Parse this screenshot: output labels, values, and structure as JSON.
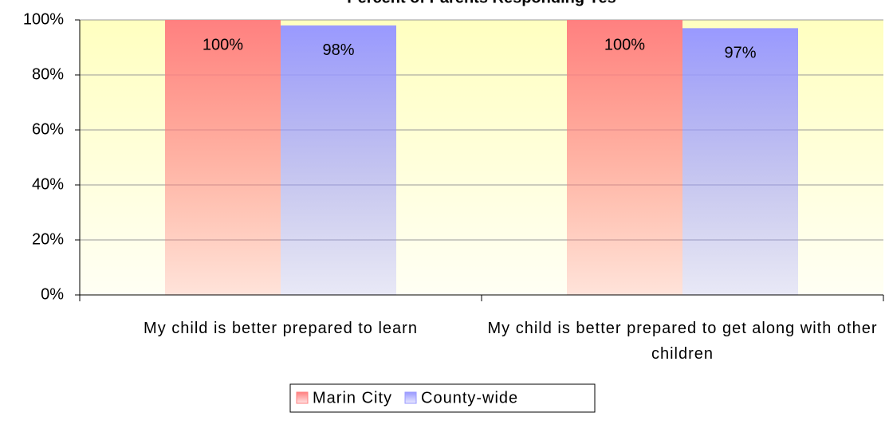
{
  "chart_data": {
    "type": "bar",
    "title": "Percent of Parents Responding Yes",
    "categories": [
      "My child is better prepared to learn",
      "My child is better prepared to get along with other children"
    ],
    "series": [
      {
        "name": "Marin City",
        "color": "#ff8080",
        "values": [
          100,
          100
        ],
        "value_labels": [
          "100%",
          "100%"
        ]
      },
      {
        "name": "County-wide",
        "color": "#9999ff",
        "values": [
          98,
          97
        ],
        "value_labels": [
          "98%",
          "97%"
        ]
      }
    ],
    "ylim": [
      0,
      100
    ],
    "yticks": [
      {
        "value": 0,
        "label": "0%"
      },
      {
        "value": 20,
        "label": "20%"
      },
      {
        "value": 40,
        "label": "40%"
      },
      {
        "value": 60,
        "label": "60%"
      },
      {
        "value": 80,
        "label": "80%"
      },
      {
        "value": 100,
        "label": "100%"
      }
    ],
    "grid": true,
    "legend": "bottom"
  }
}
